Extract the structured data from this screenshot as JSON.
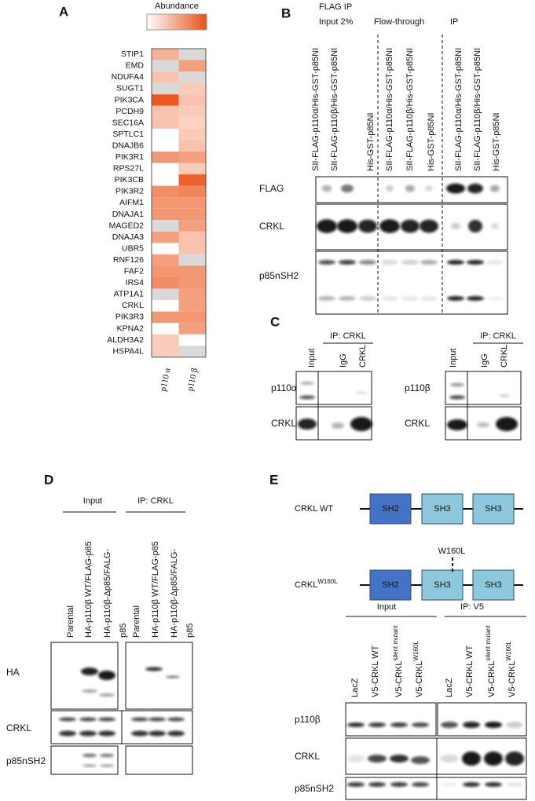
{
  "panels": {
    "A": {
      "label": "A",
      "legend_title": "Abundance",
      "genes": [
        "STIP1",
        "EMD",
        "NDUFA4",
        "SUGT1",
        "PIK3CA",
        "PCDH9",
        "SEC16A",
        "SPTLC1",
        "DNAJB6",
        "PIK3R1",
        "RPS27L",
        "PIK3CB",
        "PIK3R2",
        "AIFM1",
        "DNAJA1",
        "MAGED2",
        "DNAJA3",
        "UBR5",
        "RNF126",
        "FAF2",
        "IRS4",
        "ATP1A1",
        "CRKL",
        "PIK3R3",
        "KPNA2",
        "ALDH3A2",
        "HSPA4L"
      ],
      "columns": [
        "p110 α",
        "p110 β"
      ],
      "values": [
        [
          0.45,
          null
        ],
        [
          null,
          0.55
        ],
        [
          0.35,
          null
        ],
        [
          null,
          0.3
        ],
        [
          0.95,
          0.35
        ],
        [
          0.35,
          0.3
        ],
        [
          0.35,
          0.25
        ],
        [
          0,
          0.3
        ],
        [
          0,
          0.35
        ],
        [
          0.6,
          0.55
        ],
        [
          0,
          0.3
        ],
        [
          0,
          0.9
        ],
        [
          0.65,
          0.7
        ],
        [
          0.6,
          0.6
        ],
        [
          0.6,
          0.6
        ],
        [
          null,
          0.55
        ],
        [
          0.55,
          0.35
        ],
        [
          0,
          0.35
        ],
        [
          0.55,
          null
        ],
        [
          0.6,
          0.6
        ],
        [
          0.65,
          0.6
        ],
        [
          null,
          0.55
        ],
        [
          0,
          0.55
        ],
        [
          0.6,
          0.6
        ],
        [
          0,
          0.55
        ],
        [
          0.3,
          0
        ],
        [
          0.3,
          null
        ]
      ]
    },
    "B": {
      "label": "B",
      "title": "FLAG IP",
      "groups": [
        "Input 2%",
        "Flow-through",
        "IP"
      ],
      "lanes": [
        "SII-FLAG-p110α/His-GST-p85NI",
        "SII-FLAG-p110β/His-GST-p85NI",
        "His-GST-p85NI",
        "SII-FLAG-p110α/His-GST-p85NI",
        "SII-FLAG-p110β/His-GST-p85NI",
        "His-GST-p85NI",
        "SII-FLAG-p110α/His-GST-p85NI",
        "SII-FLAG-p110β/His-GST-p85NI",
        "His-GST-p85NI"
      ],
      "rows": [
        "FLAG",
        "CRKL",
        "p85nSH2"
      ]
    },
    "C": {
      "label": "C",
      "left": {
        "ip": "IP: CRKL",
        "lanes": [
          "Input",
          "IgG",
          "CRKL"
        ],
        "rows": [
          "p110α",
          "CRKL"
        ]
      },
      "right": {
        "ip": "IP: CRKL",
        "lanes": [
          "Input",
          "IgG",
          "CRKL"
        ],
        "rows": [
          "p110β",
          "CRKL"
        ]
      }
    },
    "D": {
      "label": "D",
      "groups": [
        "Input",
        "IP: CRKL"
      ],
      "lanes": [
        "Parental",
        "HA-p110β WT/FLAG-p85",
        "HA-p110β-Δp85/FALG-",
        "p85",
        "Parental",
        "HA-p110β WT/FLAG-p85",
        "HA-p110β-Δp85/FALG-",
        "p85"
      ],
      "rows": [
        "HA",
        "CRKL",
        "p85nSH2"
      ]
    },
    "E": {
      "label": "E",
      "constructs": [
        {
          "name": "CRKL WT"
        },
        {
          "name": "CRKL",
          "sup": "W160L"
        }
      ],
      "domains": [
        "SH2",
        "SH3",
        "SH3"
      ],
      "mutation": "W160L",
      "groups": [
        "Input",
        "IP: V5"
      ],
      "lanes": [
        {
          "name": "LacZ"
        },
        {
          "name": "V5-CRKL WT"
        },
        {
          "name": "V5-CRKL",
          "sup": "silent mutant"
        },
        {
          "name": "V5-CRKL",
          "sup": "W160L"
        },
        {
          "name": "LacZ"
        },
        {
          "name": "V5-CRKL WT"
        },
        {
          "name": "V5-CRKL",
          "sup": "silent mutant"
        },
        {
          "name": "V5-CRKL",
          "sup": "W160L"
        }
      ],
      "rows": [
        "p110β",
        "CRKL",
        "p85nSH2"
      ]
    }
  }
}
